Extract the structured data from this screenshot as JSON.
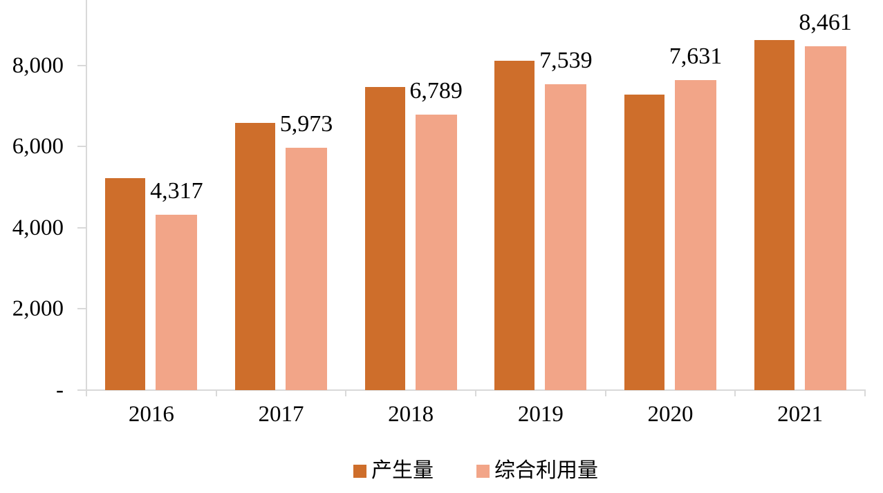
{
  "chart_data": {
    "type": "bar",
    "categories": [
      "2016",
      "2017",
      "2018",
      "2019",
      "2020",
      "2021"
    ],
    "series": [
      {
        "name": "产生量",
        "color": "#CE6E2B",
        "values": [
          5220,
          6580,
          7470,
          8110,
          7280,
          8630
        ],
        "data_labels": null
      },
      {
        "name": "综合利用量",
        "color": "#F2A588",
        "values": [
          4317,
          5973,
          6789,
          7539,
          7631,
          8461
        ],
        "data_labels": [
          "4,317",
          "5,973",
          "6,789",
          "7,539",
          "7,631",
          "8,461"
        ]
      }
    ],
    "title": "",
    "xlabel": "",
    "ylabel": "",
    "ylim": [
      0,
      9600
    ],
    "y_axis": {
      "tick_values": [
        0,
        2000,
        4000,
        6000,
        8000
      ],
      "tick_labels": [
        "-",
        "2,000",
        "4,000",
        "6,000",
        "8,000"
      ]
    },
    "grid": false,
    "legend_position": "bottom"
  },
  "legend": {
    "items": [
      {
        "label": "产生量",
        "swatch_color": "#CE6E2B"
      },
      {
        "label": "综合利用量",
        "swatch_color": "#F2A588"
      }
    ]
  },
  "styles": {
    "axis_color": "#D9D9D9",
    "text_color": "#000000",
    "background": "#FFFFFF"
  }
}
